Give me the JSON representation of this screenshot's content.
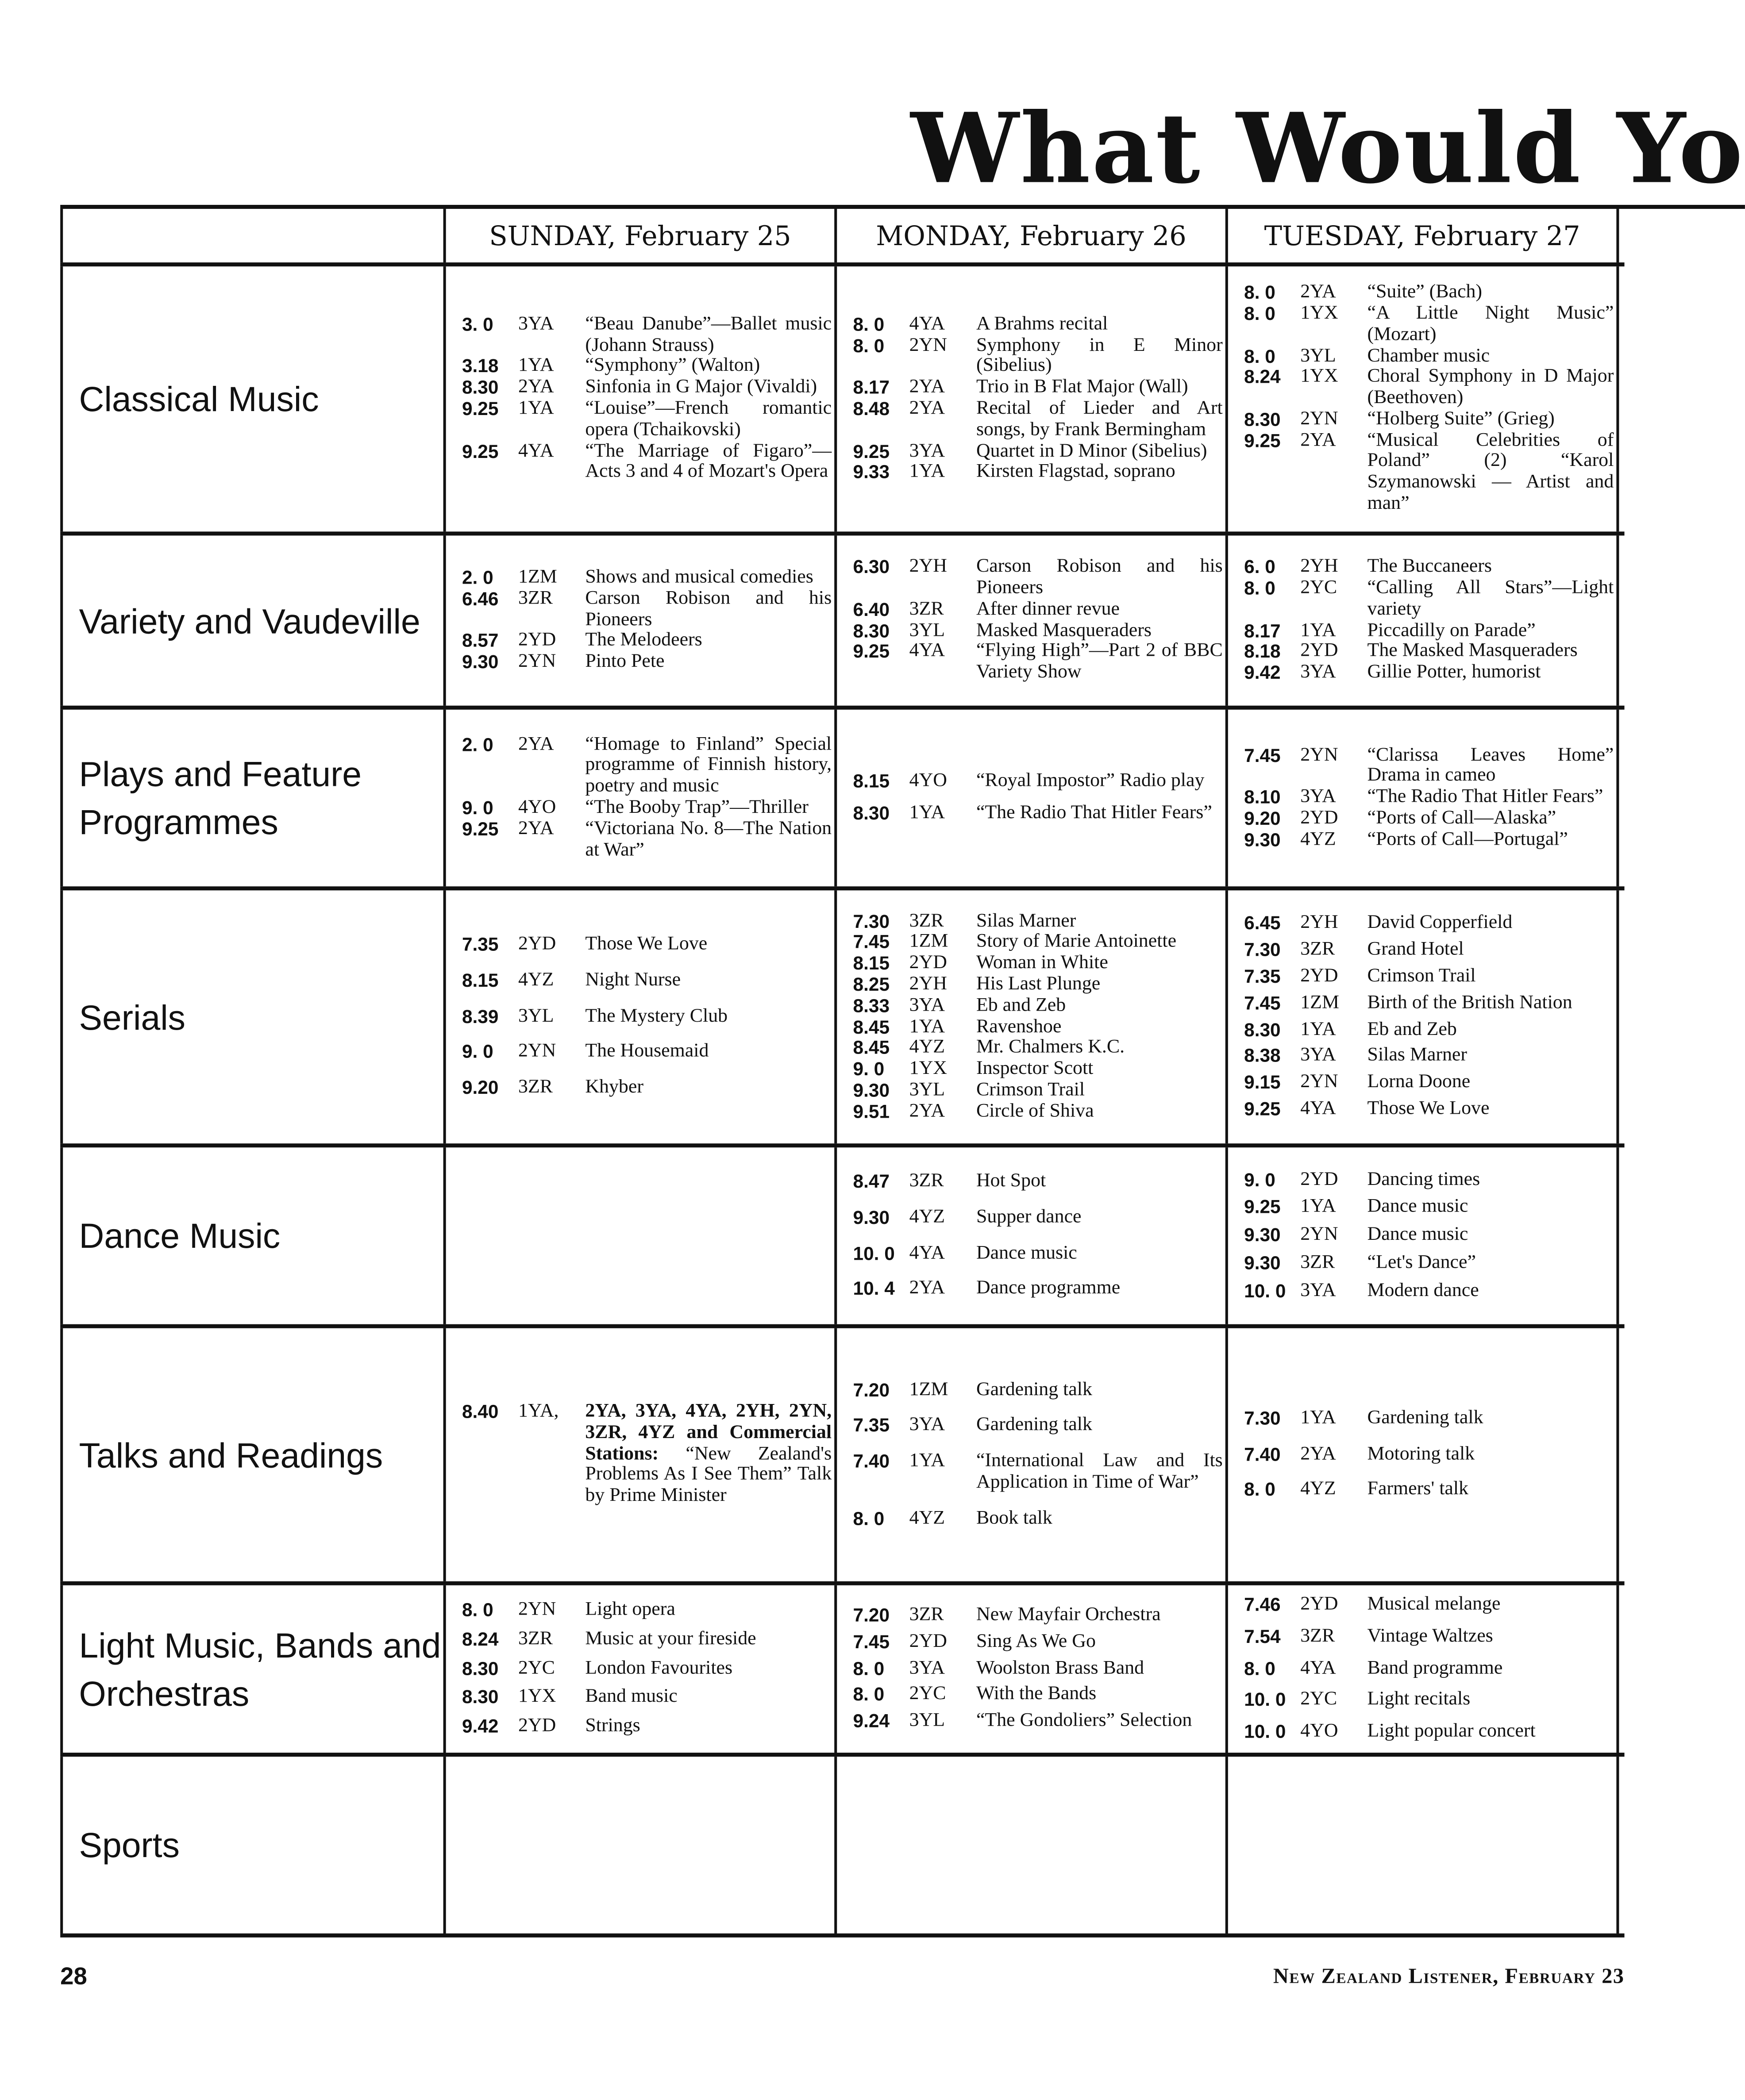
{
  "title": "What Would You",
  "days": [
    "SUNDAY, February 25",
    "MONDAY, February 26",
    "TUESDAY, February 27"
  ],
  "rows": [
    {
      "category": "Classical Music",
      "days": [
        [
          {
            "time": "3. 0",
            "station": "3YA",
            "text": "“Beau Danube”—Ballet music (Johann Strauss)"
          },
          {
            "time": "3.18",
            "station": "1YA",
            "text": "“Symphony” (Walton)"
          },
          {
            "time": "8.30",
            "station": "2YA",
            "text": "Sinfonia in G Major (Vivaldi)"
          },
          {
            "time": "9.25",
            "station": "1YA",
            "text": "“Louise”—French romantic opera (Tchaikovski)"
          },
          {
            "time": "9.25",
            "station": "4YA",
            "text": "“The Marriage of Figaro”—Acts 3 and 4 of Mozart's Opera"
          }
        ],
        [
          {
            "time": "8. 0",
            "station": "4YA",
            "text": "A Brahms recital"
          },
          {
            "time": "8. 0",
            "station": "2YN",
            "text": "Symphony in E Minor (Sibelius)"
          },
          {
            "time": "8.17",
            "station": "2YA",
            "text": "Trio in B Flat Major (Wall)"
          },
          {
            "time": "8.48",
            "station": "2YA",
            "text": "Recital of Lieder and Art songs, by Frank Bermingham"
          },
          {
            "time": "9.25",
            "station": "3YA",
            "text": "Quartet in D Minor (Sibelius)"
          },
          {
            "time": "9.33",
            "station": "1YA",
            "text": "Kirsten Flagstad, soprano"
          }
        ],
        [
          {
            "time": "8. 0",
            "station": "2YA",
            "text": "“Suite” (Bach)"
          },
          {
            "time": "8. 0",
            "station": "1YX",
            "text": "“A Little Night Music” (Mozart)"
          },
          {
            "time": "8. 0",
            "station": "3YL",
            "text": "Chamber music"
          },
          {
            "time": "8.24",
            "station": "1YX",
            "text": "Choral Symphony in D Major (Beethoven)"
          },
          {
            "time": "8.30",
            "station": "2YN",
            "text": "“Holberg Suite” (Grieg)"
          },
          {
            "time": "9.25",
            "station": "2YA",
            "text": "“Musical Celebrities of Poland” (2) “Karol Szymanowski — Artist and man”"
          }
        ]
      ]
    },
    {
      "category": "Variety and Vaudeville",
      "days": [
        [
          {
            "time": "2. 0",
            "station": "1ZM",
            "text": "Shows and musical comedies"
          },
          {
            "time": "6.46",
            "station": "3ZR",
            "text": "Carson Robison and his Pioneers"
          },
          {
            "time": "8.57",
            "station": "2YD",
            "text": "The Melodeers"
          },
          {
            "time": "9.30",
            "station": "2YN",
            "text": "Pinto Pete"
          }
        ],
        [
          {
            "time": "6.30",
            "station": "2YH",
            "text": "Carson Robison and his Pioneers"
          },
          {
            "time": "6.40",
            "station": "3ZR",
            "text": "After dinner revue"
          },
          {
            "time": "8.30",
            "station": "3YL",
            "text": "Masked Masqueraders"
          },
          {
            "time": "9.25",
            "station": "4YA",
            "text": "“Flying High”—Part 2 of BBC Variety Show"
          }
        ],
        [
          {
            "time": "6. 0",
            "station": "2YH",
            "text": "The Buccaneers"
          },
          {
            "time": "8. 0",
            "station": "2YC",
            "text": "“Calling All Stars”—Light variety"
          },
          {
            "time": "8.17",
            "station": "1YA",
            "text": "Piccadilly on Parade”"
          },
          {
            "time": "8.18",
            "station": "2YD",
            "text": "The Masked Masqueraders"
          },
          {
            "time": "9.42",
            "station": "3YA",
            "text": "Gillie Potter, humorist"
          }
        ]
      ]
    },
    {
      "category": "Plays and Feature Programmes",
      "days": [
        [
          {
            "time": "2. 0",
            "station": "2YA",
            "text": "“Homage to Finland” Special programme of Finnish history, poetry and music"
          },
          {
            "time": "9. 0",
            "station": "4YO",
            "text": "“The Booby Trap”—Thriller"
          },
          {
            "time": "9.25",
            "station": "2YA",
            "text": "“Victoriana No. 8—The Nation at War”"
          }
        ],
        [
          {
            "time": "8.15",
            "station": "4YO",
            "text": "“Royal Impostor” Radio play"
          },
          {
            "time": "8.30",
            "station": "1YA",
            "text": "“The Radio That Hitler Fears”"
          }
        ],
        [
          {
            "time": "7.45",
            "station": "2YN",
            "text": "“Clarissa Leaves Home” Drama in cameo"
          },
          {
            "time": "8.10",
            "station": "3YA",
            "text": "“The Radio That Hitler Fears”"
          },
          {
            "time": "9.20",
            "station": "2YD",
            "text": "“Ports of Call—Alaska”"
          },
          {
            "time": "9.30",
            "station": "4YZ",
            "text": "“Ports of Call—Portugal”"
          }
        ]
      ]
    },
    {
      "category": "Serials",
      "days": [
        [
          {
            "time": "7.35",
            "station": "2YD",
            "text": "Those We Love"
          },
          {
            "time": "8.15",
            "station": "4YZ",
            "text": "Night Nurse"
          },
          {
            "time": "8.39",
            "station": "3YL",
            "text": "The Mystery Club"
          },
          {
            "time": "9. 0",
            "station": "2YN",
            "text": "The Housemaid"
          },
          {
            "time": "9.20",
            "station": "3ZR",
            "text": "Khyber"
          }
        ],
        [
          {
            "time": "7.30",
            "station": "3ZR",
            "text": "Silas Marner"
          },
          {
            "time": "7.45",
            "station": "1ZM",
            "text": "Story of Marie Antoinette"
          },
          {
            "time": "8.15",
            "station": "2YD",
            "text": "Woman in White"
          },
          {
            "time": "8.25",
            "station": "2YH",
            "text": "His Last Plunge"
          },
          {
            "time": "8.33",
            "station": "3YA",
            "text": "Eb and Zeb"
          },
          {
            "time": "8.45",
            "station": "1YA",
            "text": "Ravenshoe"
          },
          {
            "time": "8.45",
            "station": "4YZ",
            "text": "Mr. Chalmers K.C."
          },
          {
            "time": "9. 0",
            "station": "1YX",
            "text": "Inspector Scott"
          },
          {
            "time": "9.30",
            "station": "3YL",
            "text": "Crimson Trail"
          },
          {
            "time": "9.51",
            "station": "2YA",
            "text": "Circle of Shiva"
          }
        ],
        [
          {
            "time": "6.45",
            "station": "2YH",
            "text": "David Copperfield"
          },
          {
            "time": "7.30",
            "station": "3ZR",
            "text": "Grand Hotel"
          },
          {
            "time": "7.35",
            "station": "2YD",
            "text": "Crimson Trail"
          },
          {
            "time": "7.45",
            "station": "1ZM",
            "text": "Birth of the British Nation"
          },
          {
            "time": "8.30",
            "station": "1YA",
            "text": "Eb and Zeb"
          },
          {
            "time": "8.38",
            "station": "3YA",
            "text": "Silas Marner"
          },
          {
            "time": "9.15",
            "station": "2YN",
            "text": "Lorna Doone"
          },
          {
            "time": "9.25",
            "station": "4YA",
            "text": "Those We Love"
          }
        ]
      ]
    },
    {
      "category": "Dance Music",
      "days": [
        [],
        [
          {
            "time": "8.47",
            "station": "3ZR",
            "text": "Hot Spot"
          },
          {
            "time": "9.30",
            "station": "4YZ",
            "text": "Supper dance"
          },
          {
            "time": "10. 0",
            "station": "4YA",
            "text": "Dance music"
          },
          {
            "time": "10. 4",
            "station": "2YA",
            "text": "Dance programme"
          }
        ],
        [
          {
            "time": "9. 0",
            "station": "2YD",
            "text": "Dancing times"
          },
          {
            "time": "9.25",
            "station": "1YA",
            "text": "Dance music"
          },
          {
            "time": "9.30",
            "station": "2YN",
            "text": "Dance music"
          },
          {
            "time": "9.30",
            "station": "3ZR",
            "text": "“Let's Dance”"
          },
          {
            "time": "10. 0",
            "station": "3YA",
            "text": "Modern dance"
          }
        ]
      ]
    },
    {
      "category": "Talks and Readings",
      "days": [
        [
          {
            "time": "8.40",
            "station": "1YA,",
            "bold": "2YA, 3YA, 4YA, 2YH, 2YN, 3ZR, 4YZ and Commercial Stations:",
            "text": "“New Zealand's Problems As I See Them” Talk by Prime Minister"
          }
        ],
        [
          {
            "time": "7.20",
            "station": "1ZM",
            "text": "Gardening talk"
          },
          {
            "time": "7.35",
            "station": "3YA",
            "text": "Gardening talk"
          },
          {
            "time": "7.40",
            "station": "1YA",
            "text": "“International Law and Its Application in Time of War”"
          },
          {
            "time": "8. 0",
            "station": "4YZ",
            "text": "Book talk"
          }
        ],
        [
          {
            "time": "7.30",
            "station": "1YA",
            "text": "Gardening talk"
          },
          {
            "time": "7.40",
            "station": "2YA",
            "text": "Motoring talk"
          },
          {
            "time": "8. 0",
            "station": "4YZ",
            "text": "Farmers' talk"
          }
        ]
      ]
    },
    {
      "category": "Light Music, Bands and Orchestras",
      "days": [
        [
          {
            "time": "8. 0",
            "station": "2YN",
            "text": "Light opera"
          },
          {
            "time": "8.24",
            "station": "3ZR",
            "text": "Music at your fireside"
          },
          {
            "time": "8.30",
            "station": "2YC",
            "text": "London Favourites"
          },
          {
            "time": "8.30",
            "station": "1YX",
            "text": "Band music"
          },
          {
            "time": "9.42",
            "station": "2YD",
            "text": "Strings"
          }
        ],
        [
          {
            "time": "7.20",
            "station": "3ZR",
            "text": "New Mayfair Orchestra"
          },
          {
            "time": "7.45",
            "station": "2YD",
            "text": "Sing As We Go"
          },
          {
            "time": "8. 0",
            "station": "3YA",
            "text": "Woolston Brass Band"
          },
          {
            "time": "8. 0",
            "station": "2YC",
            "text": "With the Bands"
          },
          {
            "time": "9.24",
            "station": "3YL",
            "text": "“The Gondoliers” Selection"
          }
        ],
        [
          {
            "time": "7.46",
            "station": "2YD",
            "text": "Musical melange"
          },
          {
            "time": "7.54",
            "station": "3ZR",
            "text": "Vintage Waltzes"
          },
          {
            "time": "8. 0",
            "station": "4YA",
            "text": "Band programme"
          },
          {
            "time": "10. 0",
            "station": "2YC",
            "text": "Light recitals"
          },
          {
            "time": "10. 0",
            "station": "4YO",
            "text": "Light popular concert"
          }
        ]
      ]
    },
    {
      "category": "Sports",
      "days": [
        [],
        [],
        []
      ]
    }
  ],
  "footer": {
    "page_number": "28",
    "publication": "New Zealand Listener, February 23"
  }
}
